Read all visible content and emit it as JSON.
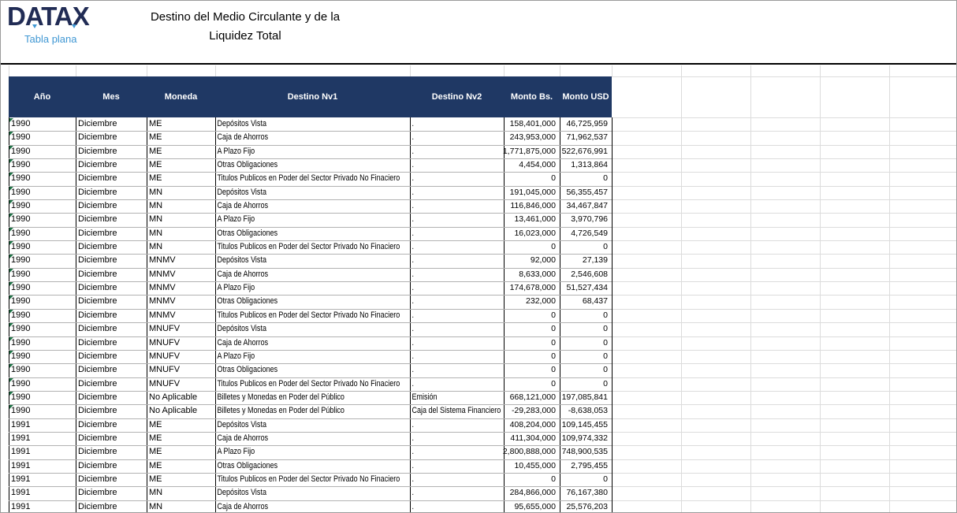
{
  "branding": {
    "logo": "DATAX",
    "tagline": "Tabla plana"
  },
  "title": {
    "line1": "Destino del Medio Circulante y de la",
    "line2": "Liquidez Total"
  },
  "colors": {
    "header_bg": "#1f3864",
    "logo_navy": "#212c55",
    "tagline_blue": "#3f97d3",
    "error_flag_green": "#1e7145",
    "gridline": "#dcdcdc",
    "row_line": "#b2b2b2"
  },
  "table": {
    "columns": [
      "Año",
      "Mes",
      "Moneda",
      "Destino Nv1",
      "Destino Nv2",
      "Monto Bs.",
      "Monto USD"
    ],
    "rows": [
      {
        "ano": "1990",
        "mes": "Diciembre",
        "moneda": "ME",
        "destino1": "Depósitos Vista",
        "destino2": ".",
        "monto_bs": "158,401,000",
        "monto_usd": "46,725,959",
        "error_flag": true
      },
      {
        "ano": "1990",
        "mes": "Diciembre",
        "moneda": "ME",
        "destino1": "Caja de Ahorros",
        "destino2": ".",
        "monto_bs": "243,953,000",
        "monto_usd": "71,962,537",
        "error_flag": true
      },
      {
        "ano": "1990",
        "mes": "Diciembre",
        "moneda": "ME",
        "destino1": "A Plazo Fijo",
        "destino2": ".",
        "monto_bs": "1,771,875,000",
        "monto_usd": "522,676,991",
        "error_flag": true
      },
      {
        "ano": "1990",
        "mes": "Diciembre",
        "moneda": "ME",
        "destino1": "Otras Obligaciones",
        "destino2": ".",
        "monto_bs": "4,454,000",
        "monto_usd": "1,313,864",
        "error_flag": true
      },
      {
        "ano": "1990",
        "mes": "Diciembre",
        "moneda": "ME",
        "destino1": "Titulos Publicos en Poder del Sector Privado No Finaciero",
        "destino2": ".",
        "monto_bs": "0",
        "monto_usd": "0",
        "error_flag": true
      },
      {
        "ano": "1990",
        "mes": "Diciembre",
        "moneda": "MN",
        "destino1": "Depósitos Vista",
        "destino2": ".",
        "monto_bs": "191,045,000",
        "monto_usd": "56,355,457",
        "error_flag": true
      },
      {
        "ano": "1990",
        "mes": "Diciembre",
        "moneda": "MN",
        "destino1": "Caja de Ahorros",
        "destino2": ".",
        "monto_bs": "116,846,000",
        "monto_usd": "34,467,847",
        "error_flag": true
      },
      {
        "ano": "1990",
        "mes": "Diciembre",
        "moneda": "MN",
        "destino1": "A Plazo Fijo",
        "destino2": ".",
        "monto_bs": "13,461,000",
        "monto_usd": "3,970,796",
        "error_flag": true
      },
      {
        "ano": "1990",
        "mes": "Diciembre",
        "moneda": "MN",
        "destino1": "Otras Obligaciones",
        "destino2": ".",
        "monto_bs": "16,023,000",
        "monto_usd": "4,726,549",
        "error_flag": true
      },
      {
        "ano": "1990",
        "mes": "Diciembre",
        "moneda": "MN",
        "destino1": "Titulos Publicos en Poder del Sector Privado No Finaciero",
        "destino2": ".",
        "monto_bs": "0",
        "monto_usd": "0",
        "error_flag": true
      },
      {
        "ano": "1990",
        "mes": "Diciembre",
        "moneda": "MNMV",
        "destino1": "Depósitos Vista",
        "destino2": ".",
        "monto_bs": "92,000",
        "monto_usd": "27,139",
        "error_flag": true
      },
      {
        "ano": "1990",
        "mes": "Diciembre",
        "moneda": "MNMV",
        "destino1": "Caja de Ahorros",
        "destino2": ".",
        "monto_bs": "8,633,000",
        "monto_usd": "2,546,608",
        "error_flag": true
      },
      {
        "ano": "1990",
        "mes": "Diciembre",
        "moneda": "MNMV",
        "destino1": "A Plazo Fijo",
        "destino2": ".",
        "monto_bs": "174,678,000",
        "monto_usd": "51,527,434",
        "error_flag": true
      },
      {
        "ano": "1990",
        "mes": "Diciembre",
        "moneda": "MNMV",
        "destino1": "Otras Obligaciones",
        "destino2": ".",
        "monto_bs": "232,000",
        "monto_usd": "68,437",
        "error_flag": true
      },
      {
        "ano": "1990",
        "mes": "Diciembre",
        "moneda": "MNMV",
        "destino1": "Titulos Publicos en Poder del Sector Privado No Finaciero",
        "destino2": ".",
        "monto_bs": "0",
        "monto_usd": "0",
        "error_flag": true
      },
      {
        "ano": "1990",
        "mes": "Diciembre",
        "moneda": "MNUFV",
        "destino1": "Depósitos Vista",
        "destino2": ".",
        "monto_bs": "0",
        "monto_usd": "0",
        "error_flag": true
      },
      {
        "ano": "1990",
        "mes": "Diciembre",
        "moneda": "MNUFV",
        "destino1": "Caja de Ahorros",
        "destino2": ".",
        "monto_bs": "0",
        "monto_usd": "0",
        "error_flag": true
      },
      {
        "ano": "1990",
        "mes": "Diciembre",
        "moneda": "MNUFV",
        "destino1": "A Plazo Fijo",
        "destino2": ".",
        "monto_bs": "0",
        "monto_usd": "0",
        "error_flag": true
      },
      {
        "ano": "1990",
        "mes": "Diciembre",
        "moneda": "MNUFV",
        "destino1": "Otras Obligaciones",
        "destino2": ".",
        "monto_bs": "0",
        "monto_usd": "0",
        "error_flag": true
      },
      {
        "ano": "1990",
        "mes": "Diciembre",
        "moneda": "MNUFV",
        "destino1": "Titulos Publicos en Poder del Sector Privado No Finaciero",
        "destino2": ".",
        "monto_bs": "0",
        "monto_usd": "0",
        "error_flag": true
      },
      {
        "ano": "1990",
        "mes": "Diciembre",
        "moneda": "No Aplicable",
        "destino1": "Billetes y Monedas en Poder del Público",
        "destino2": "Emisión",
        "monto_bs": "668,121,000",
        "monto_usd": "197,085,841",
        "error_flag": true
      },
      {
        "ano": "1990",
        "mes": "Diciembre",
        "moneda": "No Aplicable",
        "destino1": "Billetes y Monedas en Poder del Público",
        "destino2": "Caja del Sistema Financiero",
        "monto_bs": "-29,283,000",
        "monto_usd": "-8,638,053",
        "error_flag": true
      },
      {
        "ano": "1991",
        "mes": "Diciembre",
        "moneda": "ME",
        "destino1": "Depósitos Vista",
        "destino2": ".",
        "monto_bs": "408,204,000",
        "monto_usd": "109,145,455",
        "error_flag": false
      },
      {
        "ano": "1991",
        "mes": "Diciembre",
        "moneda": "ME",
        "destino1": "Caja de Ahorros",
        "destino2": ".",
        "monto_bs": "411,304,000",
        "monto_usd": "109,974,332",
        "error_flag": false
      },
      {
        "ano": "1991",
        "mes": "Diciembre",
        "moneda": "ME",
        "destino1": "A Plazo Fijo",
        "destino2": ".",
        "monto_bs": "2,800,888,000",
        "monto_usd": "748,900,535",
        "error_flag": false
      },
      {
        "ano": "1991",
        "mes": "Diciembre",
        "moneda": "ME",
        "destino1": "Otras Obligaciones",
        "destino2": ".",
        "monto_bs": "10,455,000",
        "monto_usd": "2,795,455",
        "error_flag": false
      },
      {
        "ano": "1991",
        "mes": "Diciembre",
        "moneda": "ME",
        "destino1": "Titulos Publicos en Poder del Sector Privado No Finaciero",
        "destino2": ".",
        "monto_bs": "0",
        "monto_usd": "0",
        "error_flag": false
      },
      {
        "ano": "1991",
        "mes": "Diciembre",
        "moneda": "MN",
        "destino1": "Depósitos Vista",
        "destino2": ".",
        "monto_bs": "284,866,000",
        "monto_usd": "76,167,380",
        "error_flag": false
      },
      {
        "ano": "1991",
        "mes": "Diciembre",
        "moneda": "MN",
        "destino1": "Caja de Ahorros",
        "destino2": ".",
        "monto_bs": "95,655,000",
        "monto_usd": "25,576,203",
        "error_flag": false
      }
    ]
  }
}
